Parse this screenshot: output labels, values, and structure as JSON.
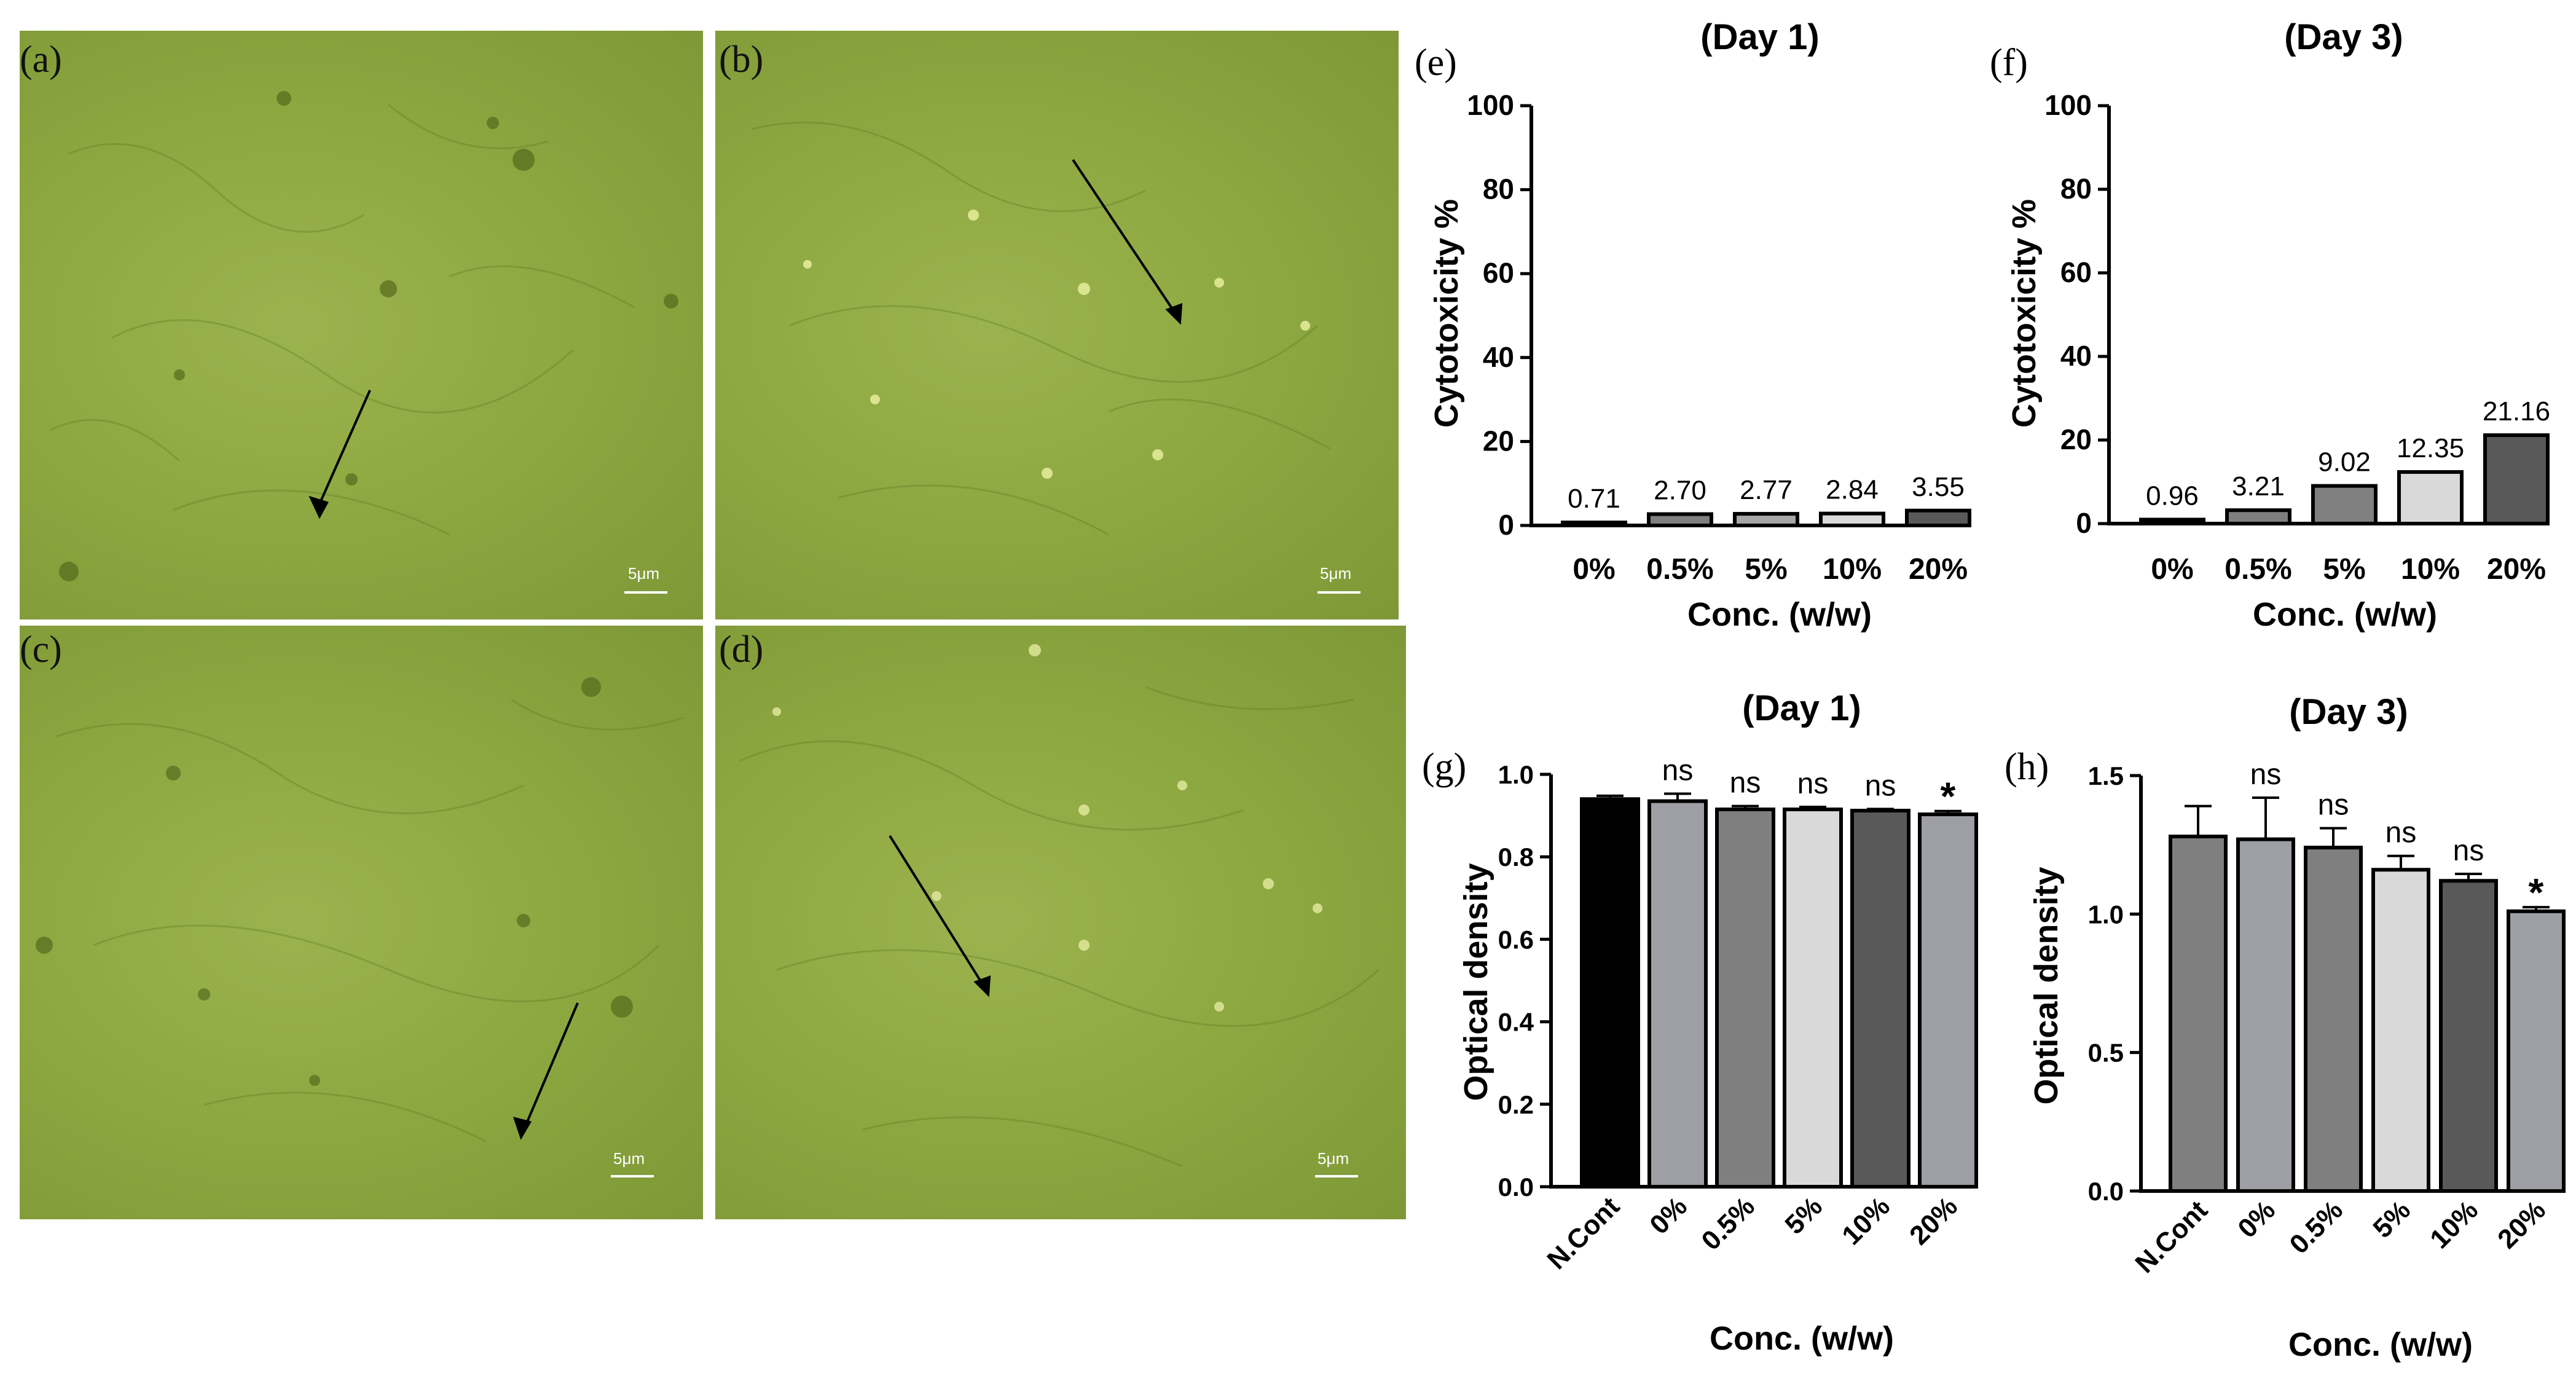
{
  "micrographs": [
    {
      "label": "(a)",
      "scale_text": "5μm"
    },
    {
      "label": "(b)",
      "scale_text": "5μm"
    },
    {
      "label": "(c)",
      "scale_text": "5μm"
    },
    {
      "label": "(d)",
      "scale_text": "5μm"
    }
  ],
  "colors": {
    "micro_base": "#8ba63f",
    "black": "#000000",
    "mid_gray": "#7f7f7f",
    "light_gray": "#a6a6a6",
    "pale_gray": "#d9d9d9",
    "dark_gray": "#595959",
    "slate_gray": "#9e9fa5"
  },
  "chart_data": [
    {
      "id": "e",
      "panel_label": "(e)",
      "type": "bar",
      "title": "(Day 1)",
      "xlabel": "Conc. (w/w)",
      "ylabel": "Cytotoxicity %",
      "ylim": [
        0,
        100
      ],
      "yticks": [
        0,
        20,
        40,
        60,
        80,
        100
      ],
      "categories": [
        "0%",
        "0.5%",
        "5%",
        "10%",
        "20%"
      ],
      "values": [
        0.71,
        2.7,
        2.77,
        2.84,
        3.55
      ],
      "data_labels": [
        "0.71",
        "2.70",
        "2.77",
        "2.84",
        "3.55"
      ],
      "bar_colors": [
        "#000000",
        "#7f7f7f",
        "#a6a6a6",
        "#d9d9d9",
        "#595959"
      ]
    },
    {
      "id": "f",
      "panel_label": "(f)",
      "type": "bar",
      "title": "(Day 3)",
      "xlabel": "Conc. (w/w)",
      "ylabel": "Cytotoxicity %",
      "ylim": [
        0,
        100
      ],
      "yticks": [
        0,
        20,
        40,
        60,
        80,
        100
      ],
      "categories": [
        "0%",
        "0.5%",
        "5%",
        "10%",
        "20%"
      ],
      "values": [
        0.96,
        3.21,
        9.02,
        12.35,
        21.16
      ],
      "data_labels": [
        "0.96",
        "3.21",
        "9.02",
        "12.35",
        "21.16"
      ],
      "bar_colors": [
        "#000000",
        "#7f7f7f",
        "#808080",
        "#d9d9d9",
        "#595959"
      ]
    },
    {
      "id": "g",
      "panel_label": "(g)",
      "type": "bar",
      "title": "(Day 1)",
      "xlabel": "Conc. (w/w)",
      "ylabel": "Optical density",
      "ylim": [
        0,
        1.0
      ],
      "yticks": [
        "0.0",
        "0.2",
        "0.4",
        "0.6",
        "0.8",
        "1.0"
      ],
      "categories": [
        "N.Cont",
        "0%",
        "0.5%",
        "5%",
        "10%",
        "20%"
      ],
      "values": [
        0.94,
        0.935,
        0.915,
        0.915,
        0.912,
        0.903
      ],
      "errors": [
        0.008,
        0.018,
        0.008,
        0.006,
        0.004,
        0.008
      ],
      "significance": [
        "",
        "ns",
        "ns",
        "ns",
        "ns",
        "*"
      ],
      "bar_colors": [
        "#000000",
        "#9e9fa5",
        "#7f7f7f",
        "#d9d9d9",
        "#595959",
        "#9e9fa5"
      ]
    },
    {
      "id": "h",
      "panel_label": "(h)",
      "type": "bar",
      "title": "(Day 3)",
      "xlabel": "Conc. (w/w)",
      "ylabel": "Optical density",
      "ylim": [
        0,
        1.5
      ],
      "yticks": [
        "0.0",
        "0.5",
        "1.0",
        "1.5"
      ],
      "categories": [
        "N.Cont",
        "0%",
        "0.5%",
        "5%",
        "10%",
        "20%"
      ],
      "values": [
        1.28,
        1.27,
        1.24,
        1.16,
        1.12,
        1.01
      ],
      "errors": [
        0.11,
        0.15,
        0.07,
        0.05,
        0.025,
        0.015
      ],
      "significance": [
        "",
        "ns",
        "ns",
        "ns",
        "ns",
        "*"
      ],
      "bar_colors": [
        "#7f7f7f",
        "#9e9fa5",
        "#7f7f7f",
        "#d9d9d9",
        "#595959",
        "#9e9fa5"
      ]
    }
  ]
}
